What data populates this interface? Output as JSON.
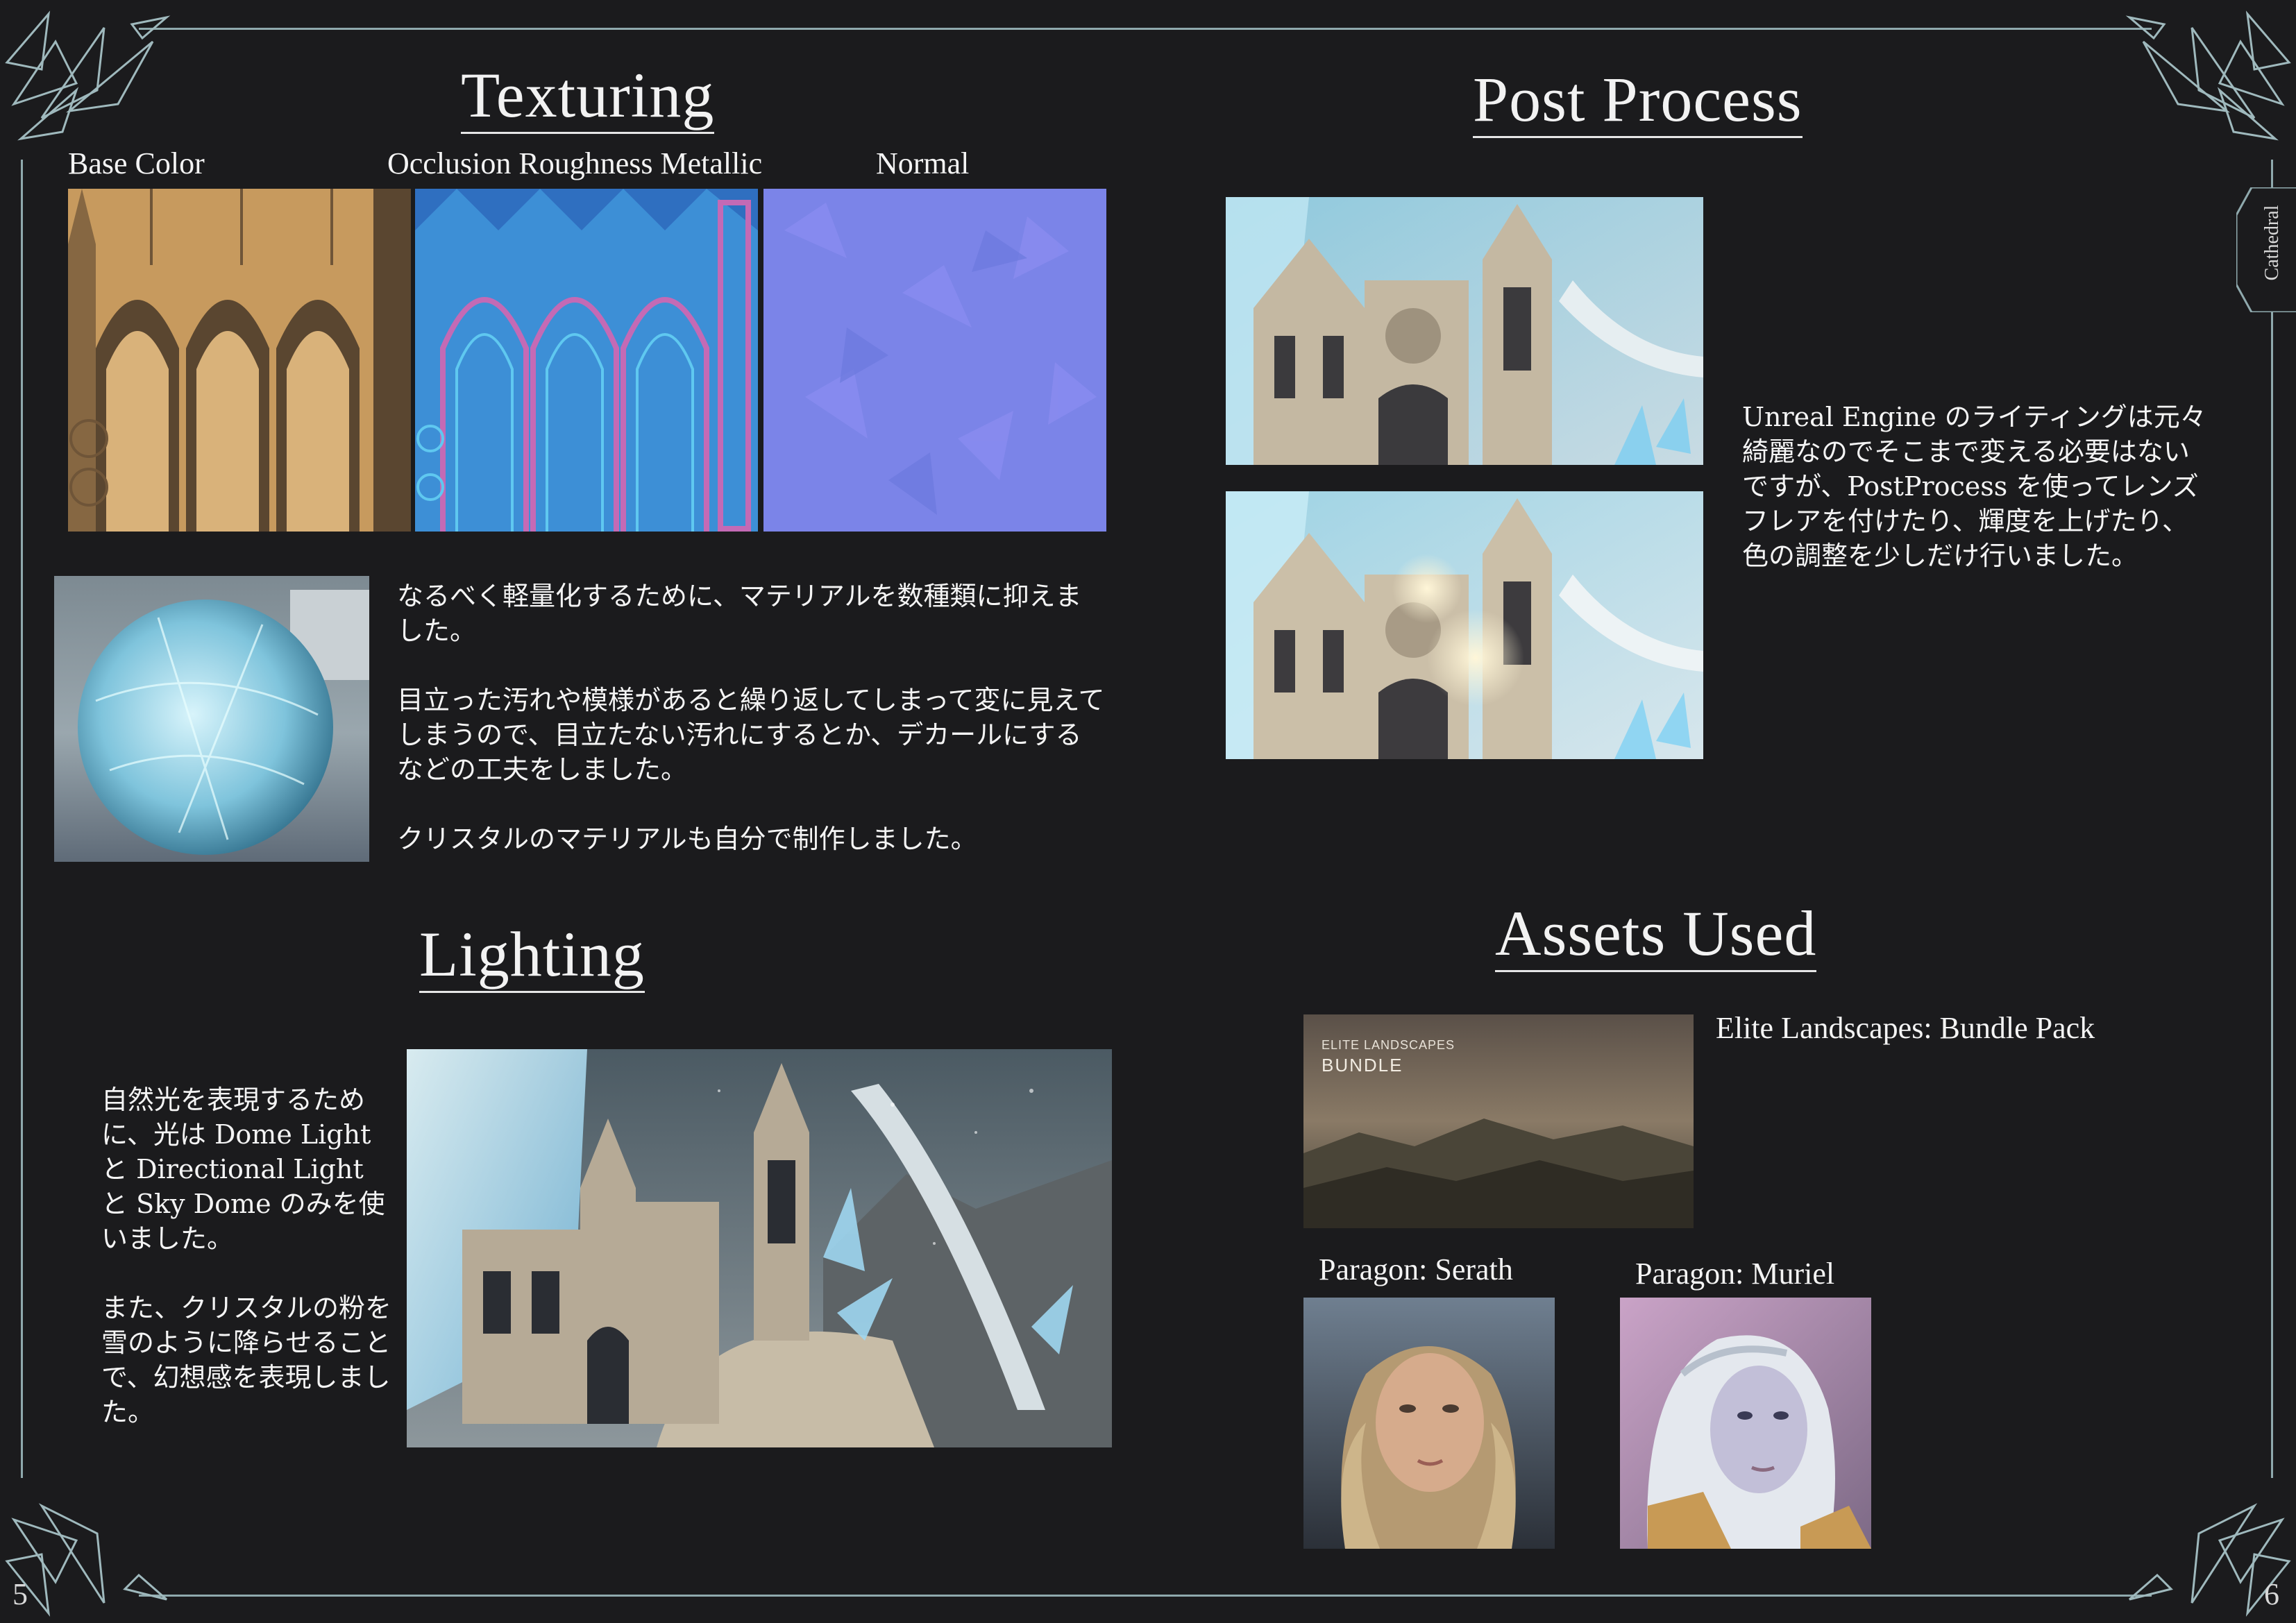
{
  "texturing": {
    "title": "Texturing",
    "labels": [
      "Base Color",
      "Occlusion Roughness Metallic",
      "Normal"
    ],
    "paragraphs": [
      "なるべく軽量化するために、マテリアルを数種類に抑えました。",
      "目立った汚れや模様があると繰り返してしまって変に見えてしまうので、目立たない汚れにするとか、デカールにするなどの工夫をしました。",
      "クリスタルのマテリアルも自分で制作しました。"
    ]
  },
  "lighting": {
    "title": "Lighting",
    "paragraphs": [
      "自然光を表現するために、光は Dome Light と Directional Light と Sky Dome のみを使いました。",
      "また、クリスタルの粉を雪のように降らせることで、幻想感を表現しました。"
    ]
  },
  "postprocess": {
    "title": "Post Process",
    "text": "Unreal Engine のライティングは元々綺麗なのでそこまで変える必要はないですが、PostProcess を使ってレンズフレアを付けたり、輝度を上げたり、色の調整を少しだけ行いました。"
  },
  "assets": {
    "title": "Assets Used",
    "bundle_name": "Elite Landscapes: Bundle Pack",
    "bundle_banner_small": "ELITE LANDSCAPES",
    "bundle_banner_large": "BUNDLE",
    "char1": "Paragon: Serath",
    "char2": "Paragon: Muriel"
  },
  "side_tab": "Cathedral",
  "page_left": "5",
  "page_right": "6",
  "colors": {
    "background": "#1b1b1d",
    "frame": "#8fa9ad",
    "text": "#f4f4f4"
  }
}
